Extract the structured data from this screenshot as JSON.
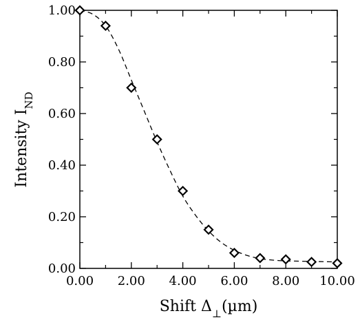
{
  "chart_data": {
    "type": "scatter",
    "title": "",
    "xlabel_main": "Shift Δ",
    "xlabel_sub": "⊥",
    "xlabel_unit": "(µm)",
    "ylabel_main": "Intensity I",
    "ylabel_sub": "ND",
    "xlim": [
      0,
      10
    ],
    "ylim": [
      0,
      1
    ],
    "x_ticks": [
      0,
      2,
      4,
      6,
      8,
      10
    ],
    "x_tick_labels": [
      "0.00",
      "2.00",
      "4.00",
      "6.00",
      "8.00",
      "10.00"
    ],
    "y_ticks": [
      0,
      0.2,
      0.4,
      0.6,
      0.8,
      1.0
    ],
    "y_tick_labels": [
      "0.00",
      "0.20",
      "0.40",
      "0.60",
      "0.80",
      "1.00"
    ],
    "grid": false,
    "series": [
      {
        "kind": "points",
        "marker": "diamond-open",
        "x": [
          0,
          1,
          2,
          3,
          4,
          5,
          6,
          7,
          8,
          9,
          10
        ],
        "y": [
          1.0,
          0.94,
          0.7,
          0.5,
          0.3,
          0.15,
          0.06,
          0.04,
          0.035,
          0.025,
          0.02
        ]
      },
      {
        "kind": "fit-curve",
        "style": "dashed",
        "x": [
          0,
          0.5,
          1,
          1.5,
          2,
          2.5,
          3,
          3.5,
          4,
          4.5,
          5,
          5.5,
          6,
          6.5,
          7,
          7.5,
          8,
          8.5,
          9,
          9.5,
          10
        ],
        "y": [
          1.0,
          0.985,
          0.94,
          0.85,
          0.73,
          0.61,
          0.49,
          0.38,
          0.28,
          0.205,
          0.145,
          0.1,
          0.07,
          0.05,
          0.038,
          0.032,
          0.029,
          0.028,
          0.027,
          0.026,
          0.025
        ]
      }
    ],
    "colors": {
      "line": "#000000",
      "marker": "#000000"
    }
  }
}
